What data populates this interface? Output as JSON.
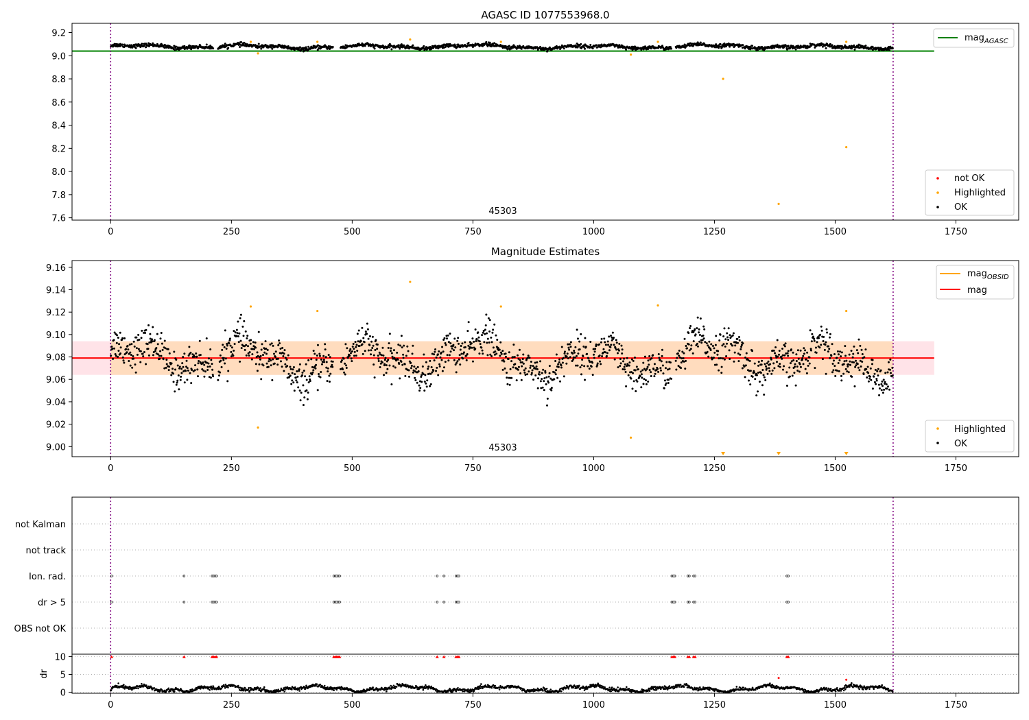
{
  "chart_data": [
    {
      "type": "scatter",
      "title": "AGASC ID 1077553968.0",
      "xlim": [
        -80,
        1880
      ],
      "ylim": [
        7.58,
        9.28
      ],
      "xticks": [
        0,
        250,
        500,
        750,
        1000,
        1250,
        1500,
        1750
      ],
      "yticks": [
        7.6,
        7.8,
        8.0,
        8.2,
        8.4,
        8.6,
        8.8,
        9.0,
        9.2
      ],
      "ytick_labels": [
        "7.6",
        "7.8",
        "8.0",
        "8.2",
        "8.4",
        "8.6",
        "8.8",
        "9.0",
        "9.2"
      ],
      "annotation": "45303",
      "vlines": [
        0,
        1620
      ],
      "hlines": [
        {
          "name": "mag_AGASC",
          "label": "mag",
          "sub": "AGASC",
          "y": 9.04,
          "x": [
            -80,
            1705
          ],
          "color": "#008000"
        }
      ],
      "legend_top": "top-right",
      "legend_bottom": "bottom-right",
      "series": [
        {
          "name": "not OK",
          "color": "#ff0000"
        },
        {
          "name": "Highlighted",
          "color": "#ffa500",
          "points": [
            [
              290,
              9.12
            ],
            [
              305,
              9.02
            ],
            [
              428,
              9.12
            ],
            [
              620,
              9.14
            ],
            [
              808,
              9.12
            ],
            [
              1077,
              9.01
            ],
            [
              1133,
              9.12
            ],
            [
              1268,
              8.8
            ],
            [
              1383,
              7.72
            ],
            [
              1523,
              8.21
            ],
            [
              1523,
              9.12
            ]
          ]
        },
        {
          "name": "OK",
          "color": "#000000",
          "baseline": 9.078,
          "amplitude": 0.022
        }
      ]
    },
    {
      "type": "scatter",
      "title": "Magnitude Estimates",
      "xlim": [
        -80,
        1880
      ],
      "ylim": [
        8.991,
        9.166
      ],
      "xticks": [
        0,
        250,
        500,
        750,
        1000,
        1250,
        1500,
        1750
      ],
      "yticks": [
        9.0,
        9.02,
        9.04,
        9.06,
        9.08,
        9.1,
        9.12,
        9.14,
        9.16
      ],
      "ytick_labels": [
        "9.00",
        "9.02",
        "9.04",
        "9.06",
        "9.08",
        "9.10",
        "9.12",
        "9.14",
        "9.16"
      ],
      "annotation": "45303",
      "vlines": [
        0,
        1620
      ],
      "mag_line": {
        "y": 9.079,
        "x": [
          -80,
          1705
        ],
        "color": "#ff0000"
      },
      "band_outer": {
        "y": [
          9.064,
          9.094
        ],
        "x": [
          -80,
          1705
        ],
        "color": "#ffc0cb"
      },
      "band_inner": {
        "y": [
          9.064,
          9.094
        ],
        "x": [
          0,
          1620
        ],
        "color": "#ffdab9"
      },
      "legend_top": "top-right",
      "legend_entries": [
        {
          "label": "mag",
          "sub": "OBSID",
          "color": "#ffa500"
        },
        {
          "label": "mag",
          "sub": "",
          "color": "#ff0000"
        }
      ],
      "legend_bottom": "bottom-right",
      "series": [
        {
          "name": "Highlighted",
          "color": "#ffa500",
          "points": [
            [
              290,
              9.125
            ],
            [
              305,
              9.017
            ],
            [
              428,
              9.121
            ],
            [
              620,
              9.147
            ],
            [
              808,
              9.125
            ],
            [
              1077,
              9.008
            ],
            [
              1133,
              9.126
            ],
            [
              1523,
              9.121
            ]
          ]
        },
        {
          "name": "OK",
          "color": "#000000"
        }
      ],
      "offscale_markers": [
        1268,
        1383,
        1523
      ]
    },
    {
      "type": "scatter",
      "xlim": [
        -80,
        1880
      ],
      "xticks": [
        0,
        250,
        500,
        750,
        1000,
        1250,
        1500,
        1750
      ],
      "vlines": [
        0,
        1620
      ],
      "flag_rows": [
        "not Kalman",
        "not track",
        "Ion. rad.",
        "dr > 5",
        "OBS not OK"
      ],
      "flag_events": [
        2,
        152,
        210,
        213,
        216,
        219,
        462,
        465,
        468,
        471,
        474,
        676,
        690,
        715,
        718,
        721,
        1162,
        1165,
        1168,
        1195,
        1198,
        1207,
        1210,
        1400,
        1403
      ],
      "dr_ylabel": "dr",
      "dr_ylim": [
        -0.3,
        10.5
      ],
      "dr_yticks": [
        0,
        5,
        10
      ],
      "dr_ytick_labels": [
        "0",
        "5",
        "10"
      ],
      "dr_outliers": [
        [
          1383,
          4.0
        ],
        [
          1523,
          3.5
        ]
      ]
    }
  ]
}
